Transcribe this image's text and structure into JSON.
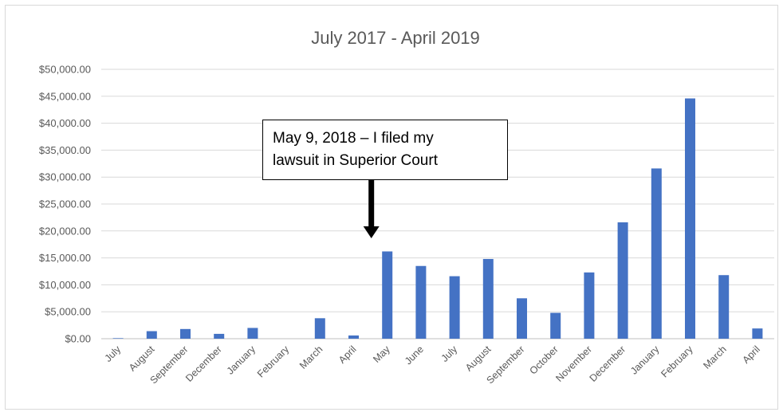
{
  "chart_data": {
    "type": "bar",
    "title": "July 2017 - April 2019",
    "xlabel": "",
    "ylabel": "",
    "ylim": [
      0,
      50000
    ],
    "y_ticks": [
      "$0.00",
      "$5,000.00",
      "$10,000.00",
      "$15,000.00",
      "$20,000.00",
      "$25,000.00",
      "$30,000.00",
      "$35,000.00",
      "$40,000.00",
      "$45,000.00",
      "$50,000.00"
    ],
    "grid": true,
    "legend": "none",
    "categories": [
      "July",
      "August",
      "September",
      "December",
      "January",
      "February",
      "March",
      "April",
      "May",
      "June",
      "July",
      "August",
      "September",
      "October",
      "November",
      "December",
      "January",
      "February",
      "March",
      "April"
    ],
    "values": [
      100,
      1400,
      1800,
      900,
      2000,
      0,
      3800,
      600,
      16200,
      13500,
      11600,
      14800,
      7500,
      4800,
      12300,
      21600,
      31600,
      44600,
      11800,
      1900
    ],
    "annotation": {
      "line1": "May 9, 2018 – I filed my",
      "line2": "lawsuit in Superior Court",
      "points_to": "May"
    },
    "bar_color": "#4472c4"
  }
}
